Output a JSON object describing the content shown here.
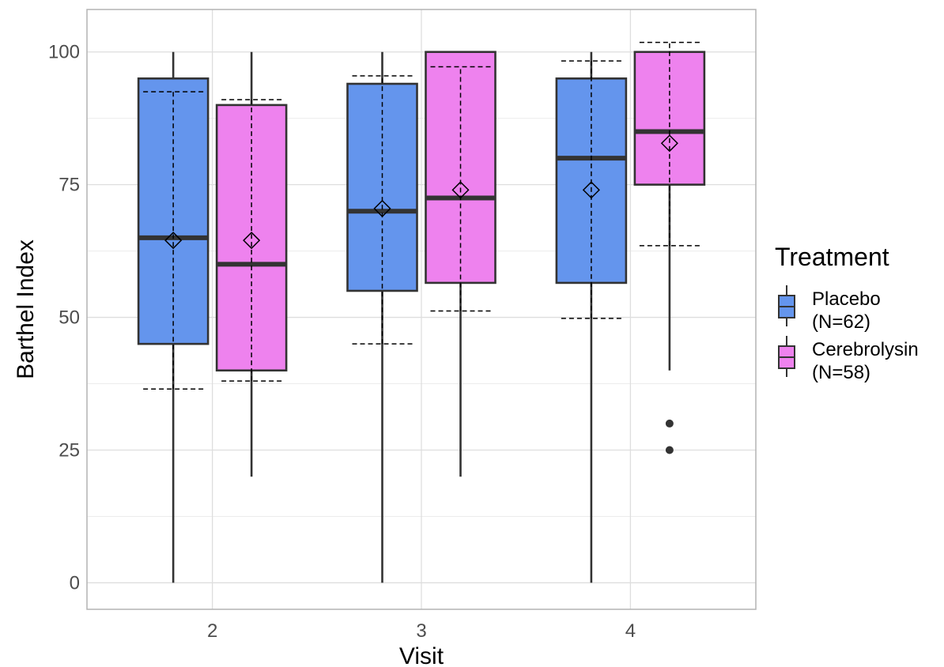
{
  "chart_data": {
    "type": "boxplot",
    "title": "",
    "xlabel": "Visit",
    "ylabel": "Barthel Index",
    "categories": [
      "2",
      "3",
      "4"
    ],
    "ylim": [
      -5,
      108
    ],
    "yticks": [
      0,
      25,
      50,
      75,
      100
    ],
    "grid": true,
    "legend": {
      "title": "Treatment",
      "position": "right",
      "entries": [
        {
          "line1": "Placebo",
          "line2": "(N=62)"
        },
        {
          "line1": "Cerebrolysin",
          "line2": "(N=58)"
        }
      ]
    },
    "series": [
      {
        "name": "Placebo",
        "color": "#6495ED",
        "boxes": [
          {
            "category": "2",
            "q1": 45,
            "median": 65,
            "q3": 95,
            "whisker_low": 0,
            "whisker_high": 100,
            "mean": 64.5,
            "sd_low": 36.5,
            "sd_high": 92.5,
            "outliers": []
          },
          {
            "category": "3",
            "q1": 55,
            "median": 70,
            "q3": 94,
            "whisker_low": 0,
            "whisker_high": 100,
            "mean": 70.5,
            "sd_low": 45,
            "sd_high": 95.5,
            "outliers": []
          },
          {
            "category": "4",
            "q1": 56.5,
            "median": 80,
            "q3": 95,
            "whisker_low": 0,
            "whisker_high": 100,
            "mean": 74,
            "sd_low": 49.8,
            "sd_high": 98.3,
            "outliers": []
          }
        ]
      },
      {
        "name": "Cerebrolysin",
        "color": "#EE82EE",
        "boxes": [
          {
            "category": "2",
            "q1": 40,
            "median": 60,
            "q3": 90,
            "whisker_low": 20,
            "whisker_high": 100,
            "mean": 64.5,
            "sd_low": 38,
            "sd_high": 91,
            "outliers": []
          },
          {
            "category": "3",
            "q1": 56.5,
            "median": 72.5,
            "q3": 100,
            "whisker_low": 20,
            "whisker_high": 100,
            "mean": 74,
            "sd_low": 51.2,
            "sd_high": 97.2,
            "outliers": []
          },
          {
            "category": "4",
            "q1": 75,
            "median": 85,
            "q3": 100,
            "whisker_low": 40,
            "whisker_high": 100,
            "mean": 82.8,
            "sd_low": 63.5,
            "sd_high": 101.8,
            "outliers": [
              30,
              25
            ]
          }
        ]
      }
    ]
  }
}
